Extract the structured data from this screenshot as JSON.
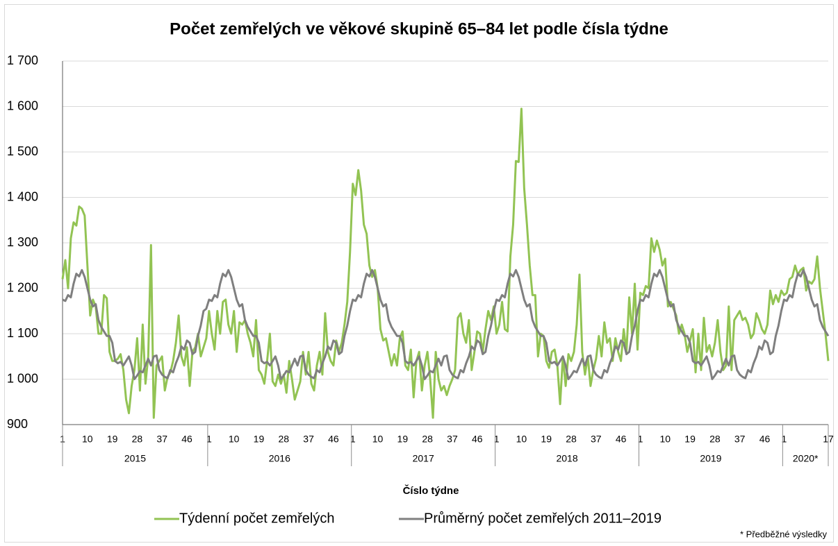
{
  "chart_data": {
    "type": "line",
    "title": "Počet zemřelých ve věkové skupině 65–84 let podle čísla týdne",
    "x_label": "Číslo týdne",
    "note": "* Předběžné výsledky",
    "groups": [
      "2015",
      "2016",
      "2017",
      "2018",
      "2019",
      "2020*"
    ],
    "categories": [
      "1",
      null,
      null,
      null,
      null,
      null,
      null,
      null,
      null,
      "10",
      null,
      null,
      null,
      null,
      null,
      null,
      null,
      null,
      "19",
      null,
      null,
      null,
      null,
      null,
      null,
      null,
      null,
      "28",
      null,
      null,
      null,
      null,
      null,
      null,
      null,
      null,
      "37",
      null,
      null,
      null,
      null,
      null,
      null,
      null,
      null,
      "46",
      null,
      null,
      null,
      null,
      null,
      null,
      null,
      "1",
      null,
      null,
      null,
      null,
      null,
      null,
      null,
      null,
      "10",
      null,
      null,
      null,
      null,
      null,
      null,
      null,
      null,
      "19",
      null,
      null,
      null,
      null,
      null,
      null,
      null,
      null,
      "28",
      null,
      null,
      null,
      null,
      null,
      null,
      null,
      null,
      "37",
      null,
      null,
      null,
      null,
      null,
      null,
      null,
      null,
      "46",
      null,
      null,
      null,
      null,
      null,
      null,
      "1",
      null,
      null,
      null,
      null,
      null,
      null,
      null,
      null,
      "10",
      null,
      null,
      null,
      null,
      null,
      null,
      null,
      null,
      "19",
      null,
      null,
      null,
      null,
      null,
      null,
      null,
      null,
      "28",
      null,
      null,
      null,
      null,
      null,
      null,
      null,
      null,
      "37",
      null,
      null,
      null,
      null,
      null,
      null,
      null,
      null,
      "46",
      null,
      null,
      null,
      null,
      null,
      null,
      "1",
      null,
      null,
      null,
      null,
      null,
      null,
      null,
      null,
      "10",
      null,
      null,
      null,
      null,
      null,
      null,
      null,
      null,
      "19",
      null,
      null,
      null,
      null,
      null,
      null,
      null,
      null,
      "28",
      null,
      null,
      null,
      null,
      null,
      null,
      null,
      null,
      "37",
      null,
      null,
      null,
      null,
      null,
      null,
      null,
      null,
      "46",
      null,
      null,
      null,
      null,
      null,
      null,
      "1",
      null,
      null,
      null,
      null,
      null,
      null,
      null,
      null,
      "10",
      null,
      null,
      null,
      null,
      null,
      null,
      null,
      null,
      "19",
      null,
      null,
      null,
      null,
      null,
      null,
      null,
      null,
      "28",
      null,
      null,
      null,
      null,
      null,
      null,
      null,
      null,
      "37",
      null,
      null,
      null,
      null,
      null,
      null,
      null,
      null,
      "46",
      null,
      null,
      null,
      null,
      null,
      null,
      "1",
      null,
      null,
      null,
      null,
      null,
      null,
      null,
      null,
      null,
      null,
      null,
      null,
      null,
      null,
      null,
      "17"
    ],
    "series": [
      {
        "name": "Týdenní počet zemřelých",
        "color": "#92c353",
        "values": [
          1220,
          1262,
          1200,
          1310,
          1345,
          1338,
          1380,
          1375,
          1360,
          1250,
          1140,
          1175,
          1160,
          1100,
          1100,
          1185,
          1178,
          1060,
          1040,
          1040,
          1045,
          1055,
          1020,
          955,
          925,
          985,
          1020,
          1090,
          975,
          1120,
          990,
          1050,
          1295,
          915,
          1030,
          1040,
          1050,
          975,
          1005,
          1015,
          1040,
          1080,
          1140,
          1050,
          1030,
          1070,
          985,
          1060,
          1070,
          1100,
          1050,
          1070,
          1090,
          1150,
          1100,
          1065,
          1150,
          1100,
          1170,
          1175,
          1120,
          1100,
          1150,
          1060,
          1125,
          1120,
          1130,
          1100,
          1080,
          1050,
          1130,
          1020,
          1010,
          990,
          1040,
          1100,
          995,
          985,
          1010,
          990,
          1010,
          970,
          1040,
          1000,
          955,
          975,
          995,
          1060,
          1010,
          1060,
          990,
          975,
          1030,
          1060,
          1010,
          1145,
          1060,
          1040,
          1030,
          1085,
          1060,
          1080,
          1120,
          1170,
          1280,
          1430,
          1405,
          1460,
          1415,
          1340,
          1320,
          1250,
          1225,
          1240,
          1200,
          1110,
          1085,
          1090,
          1060,
          1030,
          1055,
          1030,
          1090,
          1105,
          1030,
          1020,
          1065,
          960,
          1040,
          1060,
          975,
          1030,
          1060,
          1000,
          915,
          1060,
          1000,
          975,
          985,
          965,
          985,
          1000,
          1020,
          1135,
          1145,
          1100,
          1080,
          1130,
          1020,
          1060,
          1105,
          1100,
          1060,
          1110,
          1150,
          1130,
          1160,
          1100,
          1120,
          1170,
          1110,
          1105,
          1270,
          1340,
          1480,
          1478,
          1595,
          1420,
          1340,
          1250,
          1185,
          1185,
          1050,
          1100,
          1095,
          1040,
          1025,
          1060,
          1065,
          1030,
          945,
          1050,
          985,
          1055,
          1040,
          1060,
          1120,
          1230,
          1060,
          1010,
          1050,
          985,
          1020,
          1045,
          1095,
          1050,
          1125,
          1080,
          1090,
          1040,
          1090,
          1060,
          1040,
          1110,
          1060,
          1180,
          1100,
          1210,
          1065,
          1190,
          1185,
          1205,
          1200,
          1310,
          1280,
          1305,
          1285,
          1250,
          1265,
          1160,
          1170,
          1155,
          1140,
          1100,
          1120,
          1100,
          1060,
          1085,
          1110,
          1015,
          1100,
          1020,
          1135,
          1060,
          1075,
          1050,
          1080,
          1130,
          1060,
          1020,
          1030,
          1160,
          1020,
          1130,
          1140,
          1150,
          1130,
          1135,
          1120,
          1090,
          1100,
          1145,
          1130,
          1110,
          1100,
          1120,
          1195,
          1165,
          1185,
          1170,
          1195,
          1185,
          1190,
          1220,
          1225,
          1250,
          1230,
          1240,
          1245,
          1195,
          1215,
          1210,
          1220,
          1270,
          1200,
          1150,
          1100,
          1040
        ]
      },
      {
        "name": "Průměrný počet zemřelých 2011–2019",
        "color": "#7f7f7f",
        "values": [
          1175,
          1172,
          1185,
          1180,
          1210,
          1232,
          1226,
          1240,
          1225,
          1200,
          1175,
          1160,
          1165,
          1130,
          1115,
          1105,
          1095,
          1095,
          1080,
          1040,
          1035,
          1038,
          1030,
          1040,
          1050,
          1030,
          1000,
          1008,
          1018,
          1015,
          1030,
          1045,
          1030,
          1050,
          1052,
          1020,
          1010,
          1005,
          1002,
          1020,
          1015,
          1035,
          1050,
          1072,
          1065,
          1085,
          1080,
          1055,
          1060,
          1095,
          1118,
          1150,
          1155,
          1175,
          1172,
          1185,
          1180,
          1210,
          1232,
          1226,
          1240,
          1225,
          1200,
          1175,
          1160,
          1165,
          1130,
          1115,
          1105,
          1095,
          1095,
          1080,
          1040,
          1035,
          1038,
          1030,
          1040,
          1050,
          1030,
          1000,
          1008,
          1018,
          1015,
          1030,
          1045,
          1030,
          1050,
          1052,
          1020,
          1010,
          1005,
          1002,
          1020,
          1015,
          1035,
          1050,
          1072,
          1065,
          1085,
          1080,
          1055,
          1060,
          1095,
          1118,
          1150,
          1175,
          1172,
          1185,
          1180,
          1210,
          1232,
          1226,
          1240,
          1225,
          1200,
          1175,
          1160,
          1165,
          1130,
          1115,
          1105,
          1095,
          1095,
          1080,
          1040,
          1035,
          1038,
          1030,
          1040,
          1050,
          1030,
          1000,
          1008,
          1018,
          1015,
          1030,
          1045,
          1030,
          1050,
          1052,
          1020,
          1010,
          1005,
          1002,
          1020,
          1015,
          1035,
          1050,
          1072,
          1065,
          1085,
          1080,
          1055,
          1060,
          1095,
          1118,
          1150,
          1175,
          1172,
          1185,
          1180,
          1210,
          1232,
          1226,
          1240,
          1225,
          1200,
          1175,
          1160,
          1165,
          1130,
          1115,
          1105,
          1095,
          1095,
          1080,
          1040,
          1035,
          1038,
          1030,
          1040,
          1050,
          1030,
          1000,
          1008,
          1018,
          1015,
          1030,
          1045,
          1030,
          1050,
          1052,
          1020,
          1010,
          1005,
          1002,
          1020,
          1015,
          1035,
          1050,
          1072,
          1065,
          1085,
          1080,
          1055,
          1060,
          1095,
          1118,
          1150,
          1175,
          1172,
          1185,
          1180,
          1210,
          1232,
          1226,
          1240,
          1225,
          1200,
          1175,
          1160,
          1165,
          1130,
          1115,
          1105,
          1095,
          1095,
          1080,
          1040,
          1035,
          1038,
          1030,
          1040,
          1050,
          1030,
          1000,
          1008,
          1018,
          1015,
          1030,
          1045,
          1030,
          1050,
          1052,
          1020,
          1010,
          1005,
          1002,
          1020,
          1015,
          1035,
          1050,
          1072,
          1065,
          1085,
          1080,
          1055,
          1060,
          1095,
          1118,
          1150,
          1175,
          1172,
          1185,
          1180,
          1210,
          1232,
          1226,
          1240,
          1225,
          1200,
          1175,
          1160,
          1165,
          1130,
          1115,
          1105,
          1095
        ]
      }
    ],
    "ylim": [
      900,
      1700
    ],
    "yticks": [
      900,
      {
        "value": 1000,
        "label": "1 000"
      },
      {
        "value": 1100,
        "label": "1 100"
      },
      {
        "value": 1200,
        "label": "1 200"
      },
      {
        "value": 1300,
        "label": "1 300"
      },
      {
        "value": 1400,
        "label": "1 400"
      },
      {
        "value": 1500,
        "label": "1 500"
      },
      {
        "value": 1600,
        "label": "1 600"
      },
      {
        "value": 1700,
        "label": "1 700"
      }
    ],
    "grid": true,
    "legend": "bottom"
  }
}
